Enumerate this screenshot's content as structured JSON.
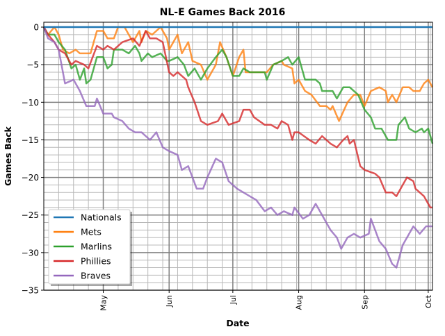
{
  "chart_data": {
    "type": "line",
    "title": "NL-E Games Back 2016",
    "xlabel": "Date",
    "ylabel": "Games Back",
    "x_unit": "days since Apr 3, 2016",
    "xlim": [
      0,
      183
    ],
    "ylim": [
      -35,
      0.65
    ],
    "yticks": [
      0,
      -5,
      -10,
      -15,
      -20,
      -25,
      -30,
      -35
    ],
    "ytick_labels": [
      "0",
      "−5",
      "−10",
      "−15",
      "−20",
      "−25",
      "−30",
      "−35"
    ],
    "xticks": [
      28,
      59,
      89,
      120,
      151,
      181
    ],
    "xtick_labels": [
      "May",
      "Jun",
      "Jul",
      "Aug",
      "Sep",
      "Oct"
    ],
    "grid": "major and minor",
    "legend_position": "bottom-left",
    "series": [
      {
        "name": "Nationals",
        "color": "#1f77b4",
        "points": [
          [
            0,
            0
          ],
          [
            183,
            0
          ]
        ]
      },
      {
        "name": "Mets",
        "color": "#ff7f0e",
        "points": [
          [
            0,
            0
          ],
          [
            2,
            -1
          ],
          [
            5,
            0
          ],
          [
            7,
            -1
          ],
          [
            9,
            -3
          ],
          [
            12,
            -3.5
          ],
          [
            15,
            -3
          ],
          [
            17,
            -3.5
          ],
          [
            19,
            -3.5
          ],
          [
            22,
            -3.5
          ],
          [
            25,
            -0.5
          ],
          [
            28,
            -0.5
          ],
          [
            30,
            -1.5
          ],
          [
            33,
            -1.5
          ],
          [
            35,
            0
          ],
          [
            38,
            0
          ],
          [
            42,
            -2
          ],
          [
            45,
            -0.5
          ],
          [
            46,
            -2
          ],
          [
            48,
            -0.5
          ],
          [
            51,
            -1
          ],
          [
            55,
            0
          ],
          [
            58,
            -1.5
          ],
          [
            59,
            -3
          ],
          [
            63,
            -1
          ],
          [
            65,
            -3.5
          ],
          [
            68,
            -2
          ],
          [
            70,
            -4.5
          ],
          [
            74,
            -5
          ],
          [
            77,
            -7
          ],
          [
            81,
            -5
          ],
          [
            83,
            -2
          ],
          [
            86,
            -4
          ],
          [
            89,
            -6.5
          ],
          [
            92,
            -4
          ],
          [
            94,
            -3
          ],
          [
            95,
            -6
          ],
          [
            99,
            -6
          ],
          [
            102,
            -6
          ],
          [
            105,
            -6
          ],
          [
            108,
            -5
          ],
          [
            112,
            -4.5
          ],
          [
            113,
            -5
          ],
          [
            117,
            -5.5
          ],
          [
            118,
            -7.5
          ],
          [
            120,
            -7
          ],
          [
            123,
            -8.5
          ],
          [
            126,
            -9
          ],
          [
            130,
            -10.5
          ],
          [
            133,
            -10.5
          ],
          [
            135,
            -11
          ],
          [
            136,
            -10.5
          ],
          [
            139,
            -12.5
          ],
          [
            143,
            -10
          ],
          [
            146,
            -9
          ],
          [
            149,
            -9
          ],
          [
            151,
            -10.5
          ],
          [
            154,
            -8.5
          ],
          [
            158,
            -8
          ],
          [
            161,
            -8.5
          ],
          [
            162,
            -10
          ],
          [
            164,
            -9
          ],
          [
            166,
            -10
          ],
          [
            169,
            -8
          ],
          [
            172,
            -8
          ],
          [
            174,
            -8.5
          ],
          [
            177,
            -8.5
          ],
          [
            179,
            -7.5
          ],
          [
            181,
            -7
          ],
          [
            183,
            -8
          ]
        ]
      },
      {
        "name": "Marlins",
        "color": "#2ca02c",
        "points": [
          [
            0,
            0
          ],
          [
            2,
            -1
          ],
          [
            5,
            -1
          ],
          [
            7,
            -2
          ],
          [
            10,
            -3
          ],
          [
            13,
            -5.5
          ],
          [
            15,
            -5
          ],
          [
            17,
            -7
          ],
          [
            19,
            -5.5
          ],
          [
            20,
            -7.5
          ],
          [
            22,
            -7
          ],
          [
            25,
            -4
          ],
          [
            28,
            -4
          ],
          [
            30,
            -5.5
          ],
          [
            32,
            -5
          ],
          [
            33,
            -3
          ],
          [
            37,
            -3
          ],
          [
            40,
            -3.5
          ],
          [
            43,
            -2.5
          ],
          [
            45,
            -3.5
          ],
          [
            46,
            -4.5
          ],
          [
            49,
            -3.5
          ],
          [
            51,
            -4
          ],
          [
            55,
            -3.5
          ],
          [
            58,
            -4.5
          ],
          [
            59,
            -4.5
          ],
          [
            63,
            -4
          ],
          [
            66,
            -5
          ],
          [
            68,
            -6.5
          ],
          [
            71,
            -5.5
          ],
          [
            74,
            -7
          ],
          [
            77,
            -5.5
          ],
          [
            81,
            -4
          ],
          [
            84,
            -3
          ],
          [
            86,
            -4
          ],
          [
            89,
            -6.5
          ],
          [
            92,
            -6.5
          ],
          [
            94,
            -5.5
          ],
          [
            97,
            -6
          ],
          [
            104,
            -6
          ],
          [
            105,
            -7
          ],
          [
            108,
            -5
          ],
          [
            112,
            -4.5
          ],
          [
            115,
            -4
          ],
          [
            117,
            -5
          ],
          [
            120,
            -4
          ],
          [
            123,
            -7
          ],
          [
            128,
            -7
          ],
          [
            130,
            -7.5
          ],
          [
            131,
            -8.5
          ],
          [
            136,
            -8.5
          ],
          [
            138,
            -9.5
          ],
          [
            141,
            -8
          ],
          [
            144,
            -8
          ],
          [
            148,
            -9
          ],
          [
            151,
            -11
          ],
          [
            154,
            -12
          ],
          [
            156,
            -13.5
          ],
          [
            159,
            -13.5
          ],
          [
            162,
            -15
          ],
          [
            166,
            -15
          ],
          [
            167,
            -13
          ],
          [
            170,
            -12
          ],
          [
            172,
            -13.5
          ],
          [
            175,
            -14
          ],
          [
            178,
            -13.5
          ],
          [
            179,
            -14
          ],
          [
            181,
            -13.5
          ],
          [
            183,
            -15.5
          ]
        ]
      },
      {
        "name": "Phillies",
        "color": "#d62728",
        "points": [
          [
            0,
            0
          ],
          [
            2,
            -1
          ],
          [
            5,
            -2
          ],
          [
            7,
            -3
          ],
          [
            10,
            -3.5
          ],
          [
            13,
            -5
          ],
          [
            15,
            -4.5
          ],
          [
            19,
            -5
          ],
          [
            21,
            -5.5
          ],
          [
            25,
            -2.5
          ],
          [
            28,
            -3
          ],
          [
            30,
            -2.5
          ],
          [
            33,
            -3
          ],
          [
            37,
            -2
          ],
          [
            42,
            -1.5
          ],
          [
            45,
            -2.5
          ],
          [
            48,
            -0.5
          ],
          [
            50,
            -1.5
          ],
          [
            53,
            -1.5
          ],
          [
            56,
            -2
          ],
          [
            59,
            -6
          ],
          [
            61,
            -6.5
          ],
          [
            63,
            -6
          ],
          [
            65,
            -6.5
          ],
          [
            67,
            -7
          ],
          [
            68,
            -8
          ],
          [
            71,
            -10
          ],
          [
            74,
            -12.5
          ],
          [
            77,
            -13
          ],
          [
            82,
            -12.5
          ],
          [
            84,
            -11.5
          ],
          [
            87,
            -13
          ],
          [
            92,
            -12.5
          ],
          [
            94,
            -11
          ],
          [
            97,
            -11
          ],
          [
            99,
            -12
          ],
          [
            104,
            -13
          ],
          [
            107,
            -13
          ],
          [
            110,
            -13.5
          ],
          [
            112,
            -12.5
          ],
          [
            115,
            -13
          ],
          [
            117,
            -15
          ],
          [
            118,
            -14
          ],
          [
            120,
            -14
          ],
          [
            125,
            -15
          ],
          [
            128,
            -15.5
          ],
          [
            131,
            -14.5
          ],
          [
            135,
            -15.5
          ],
          [
            138,
            -16
          ],
          [
            141,
            -15
          ],
          [
            143,
            -14.5
          ],
          [
            144,
            -15.5
          ],
          [
            146,
            -15
          ],
          [
            149,
            -18.5
          ],
          [
            151,
            -19
          ],
          [
            156,
            -19.5
          ],
          [
            158,
            -20
          ],
          [
            161,
            -22
          ],
          [
            164,
            -22
          ],
          [
            166,
            -22.5
          ],
          [
            169,
            -21
          ],
          [
            171,
            -20
          ],
          [
            174,
            -20.5
          ],
          [
            175,
            -21.5
          ],
          [
            179,
            -22.5
          ],
          [
            180,
            -23
          ],
          [
            182,
            -24
          ],
          [
            183,
            -24
          ]
        ]
      },
      {
        "name": "Braves",
        "color": "#9467bd",
        "points": [
          [
            0,
            0
          ],
          [
            2,
            -1.5
          ],
          [
            5,
            -2
          ],
          [
            7,
            -3
          ],
          [
            10,
            -7.5
          ],
          [
            14,
            -7
          ],
          [
            17,
            -8.5
          ],
          [
            20,
            -10.5
          ],
          [
            24,
            -10.5
          ],
          [
            25,
            -9.5
          ],
          [
            28,
            -11.5
          ],
          [
            32,
            -11.5
          ],
          [
            33,
            -12
          ],
          [
            37,
            -12.5
          ],
          [
            40,
            -13.5
          ],
          [
            43,
            -14
          ],
          [
            46,
            -14
          ],
          [
            50,
            -15
          ],
          [
            53,
            -14
          ],
          [
            56,
            -16
          ],
          [
            59,
            -16.5
          ],
          [
            63,
            -17
          ],
          [
            65,
            -19
          ],
          [
            68,
            -18.5
          ],
          [
            72,
            -21.5
          ],
          [
            75,
            -21.5
          ],
          [
            77,
            -20
          ],
          [
            81,
            -17.5
          ],
          [
            84,
            -18
          ],
          [
            87,
            -20.5
          ],
          [
            91,
            -21.5
          ],
          [
            94,
            -22
          ],
          [
            97,
            -22.5
          ],
          [
            100,
            -23
          ],
          [
            104,
            -24.5
          ],
          [
            107,
            -24
          ],
          [
            110,
            -25
          ],
          [
            113,
            -24.5
          ],
          [
            117,
            -25
          ],
          [
            118,
            -24
          ],
          [
            122,
            -25.5
          ],
          [
            125,
            -25
          ],
          [
            128,
            -23.5
          ],
          [
            131,
            -25
          ],
          [
            135,
            -27
          ],
          [
            138,
            -28
          ],
          [
            140,
            -29.5
          ],
          [
            143,
            -28
          ],
          [
            146,
            -27.5
          ],
          [
            149,
            -28
          ],
          [
            153,
            -27.5
          ],
          [
            154,
            -25.5
          ],
          [
            158,
            -28.5
          ],
          [
            161,
            -29.5
          ],
          [
            164,
            -31.5
          ],
          [
            166,
            -32
          ],
          [
            169,
            -29
          ],
          [
            172,
            -27.5
          ],
          [
            174,
            -26.5
          ],
          [
            177,
            -27.5
          ],
          [
            180,
            -26.5
          ],
          [
            183,
            -26.5
          ]
        ]
      }
    ]
  }
}
